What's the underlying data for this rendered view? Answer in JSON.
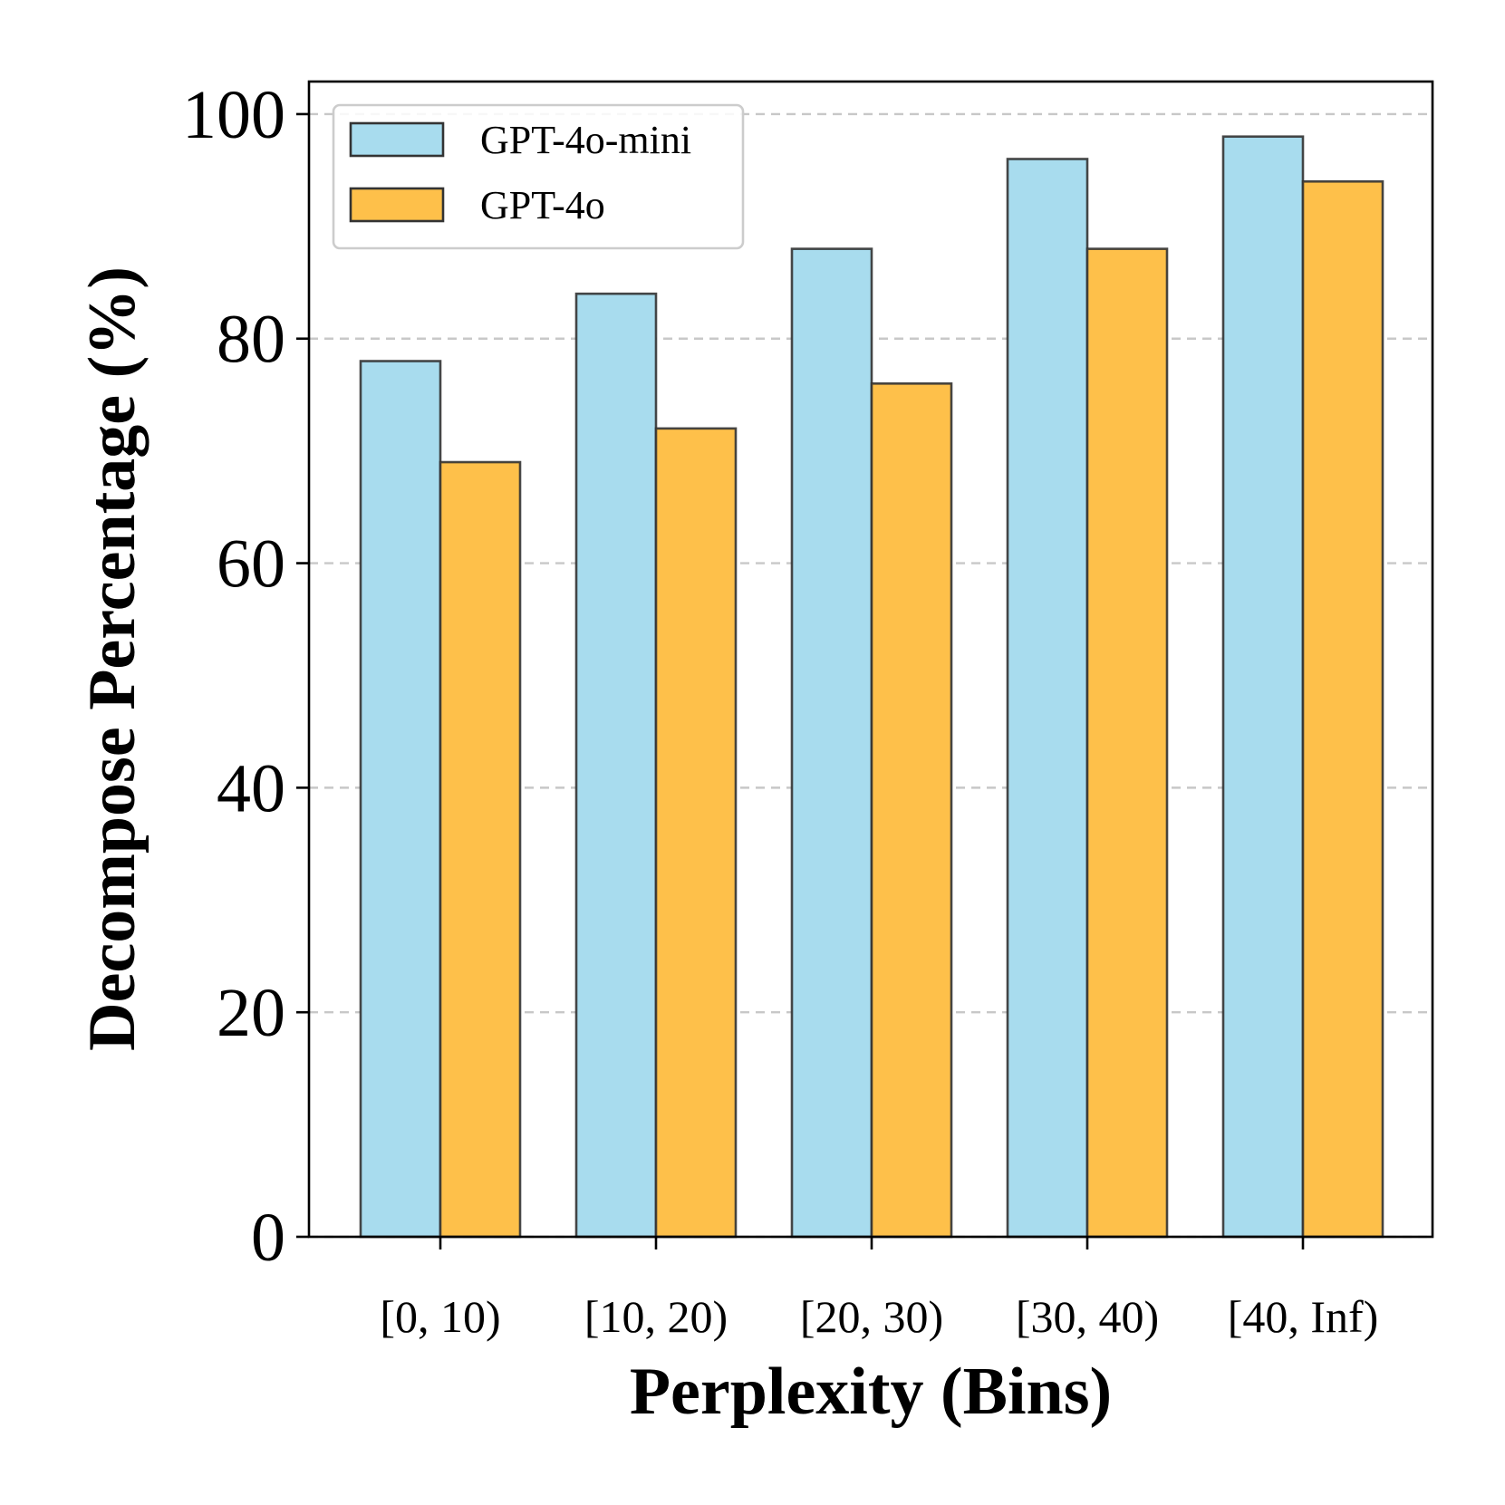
{
  "chart_data": {
    "type": "bar",
    "title": "",
    "xlabel": "Perplexity (Bins)",
    "ylabel": "Decompose Percentage (%)",
    "categories": [
      "[0, 10)",
      "[10, 20)",
      "[20, 30)",
      "[30, 40)",
      "[40, Inf)"
    ],
    "series": [
      {
        "name": "GPT-4o-mini",
        "color": "#a8dcee",
        "values": [
          78,
          84,
          88,
          96,
          98
        ]
      },
      {
        "name": "GPT-4o",
        "color": "#fec04a",
        "values": [
          69,
          72,
          76,
          88,
          94
        ]
      }
    ],
    "ylim": [
      0,
      102.9
    ],
    "yticks": [
      "0",
      "20",
      "40",
      "60",
      "80",
      "100"
    ],
    "ytick_values": [
      0,
      20,
      40,
      60,
      80,
      100
    ],
    "grid": "y-dashed",
    "legend_position": "top-left"
  }
}
